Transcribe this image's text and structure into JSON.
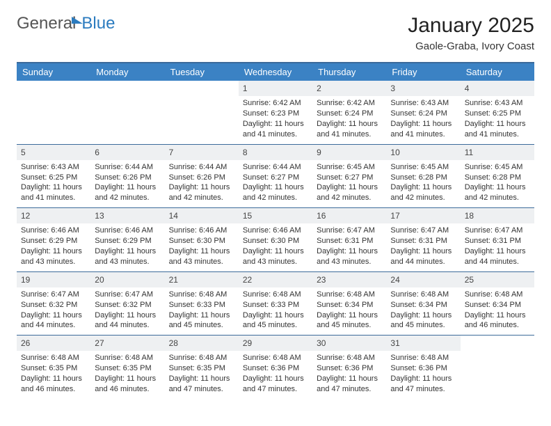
{
  "logo": {
    "text1": "General",
    "text2": "Blue"
  },
  "title": "January 2025",
  "location": "Gaole-Graba, Ivory Coast",
  "colors": {
    "header_bg": "#3b82c4",
    "header_fg": "#ffffff",
    "border": "#3b6a9a",
    "daynum_bg": "#eef0f2",
    "text": "#333333",
    "logo_gray": "#555555",
    "logo_blue": "#2b7bbf",
    "background": "#ffffff"
  },
  "typography": {
    "title_fontsize": 30,
    "location_fontsize": 15,
    "header_fontsize": 13,
    "daynum_fontsize": 12,
    "cell_fontsize": 11
  },
  "dayHeaders": [
    "Sunday",
    "Monday",
    "Tuesday",
    "Wednesday",
    "Thursday",
    "Friday",
    "Saturday"
  ],
  "weeks": [
    [
      null,
      null,
      null,
      {
        "n": "1",
        "sr": "Sunrise: 6:42 AM",
        "ss": "Sunset: 6:23 PM",
        "dl": "Daylight: 11 hours and 41 minutes."
      },
      {
        "n": "2",
        "sr": "Sunrise: 6:42 AM",
        "ss": "Sunset: 6:24 PM",
        "dl": "Daylight: 11 hours and 41 minutes."
      },
      {
        "n": "3",
        "sr": "Sunrise: 6:43 AM",
        "ss": "Sunset: 6:24 PM",
        "dl": "Daylight: 11 hours and 41 minutes."
      },
      {
        "n": "4",
        "sr": "Sunrise: 6:43 AM",
        "ss": "Sunset: 6:25 PM",
        "dl": "Daylight: 11 hours and 41 minutes."
      }
    ],
    [
      {
        "n": "5",
        "sr": "Sunrise: 6:43 AM",
        "ss": "Sunset: 6:25 PM",
        "dl": "Daylight: 11 hours and 41 minutes."
      },
      {
        "n": "6",
        "sr": "Sunrise: 6:44 AM",
        "ss": "Sunset: 6:26 PM",
        "dl": "Daylight: 11 hours and 42 minutes."
      },
      {
        "n": "7",
        "sr": "Sunrise: 6:44 AM",
        "ss": "Sunset: 6:26 PM",
        "dl": "Daylight: 11 hours and 42 minutes."
      },
      {
        "n": "8",
        "sr": "Sunrise: 6:44 AM",
        "ss": "Sunset: 6:27 PM",
        "dl": "Daylight: 11 hours and 42 minutes."
      },
      {
        "n": "9",
        "sr": "Sunrise: 6:45 AM",
        "ss": "Sunset: 6:27 PM",
        "dl": "Daylight: 11 hours and 42 minutes."
      },
      {
        "n": "10",
        "sr": "Sunrise: 6:45 AM",
        "ss": "Sunset: 6:28 PM",
        "dl": "Daylight: 11 hours and 42 minutes."
      },
      {
        "n": "11",
        "sr": "Sunrise: 6:45 AM",
        "ss": "Sunset: 6:28 PM",
        "dl": "Daylight: 11 hours and 42 minutes."
      }
    ],
    [
      {
        "n": "12",
        "sr": "Sunrise: 6:46 AM",
        "ss": "Sunset: 6:29 PM",
        "dl": "Daylight: 11 hours and 43 minutes."
      },
      {
        "n": "13",
        "sr": "Sunrise: 6:46 AM",
        "ss": "Sunset: 6:29 PM",
        "dl": "Daylight: 11 hours and 43 minutes."
      },
      {
        "n": "14",
        "sr": "Sunrise: 6:46 AM",
        "ss": "Sunset: 6:30 PM",
        "dl": "Daylight: 11 hours and 43 minutes."
      },
      {
        "n": "15",
        "sr": "Sunrise: 6:46 AM",
        "ss": "Sunset: 6:30 PM",
        "dl": "Daylight: 11 hours and 43 minutes."
      },
      {
        "n": "16",
        "sr": "Sunrise: 6:47 AM",
        "ss": "Sunset: 6:31 PM",
        "dl": "Daylight: 11 hours and 43 minutes."
      },
      {
        "n": "17",
        "sr": "Sunrise: 6:47 AM",
        "ss": "Sunset: 6:31 PM",
        "dl": "Daylight: 11 hours and 44 minutes."
      },
      {
        "n": "18",
        "sr": "Sunrise: 6:47 AM",
        "ss": "Sunset: 6:31 PM",
        "dl": "Daylight: 11 hours and 44 minutes."
      }
    ],
    [
      {
        "n": "19",
        "sr": "Sunrise: 6:47 AM",
        "ss": "Sunset: 6:32 PM",
        "dl": "Daylight: 11 hours and 44 minutes."
      },
      {
        "n": "20",
        "sr": "Sunrise: 6:47 AM",
        "ss": "Sunset: 6:32 PM",
        "dl": "Daylight: 11 hours and 44 minutes."
      },
      {
        "n": "21",
        "sr": "Sunrise: 6:48 AM",
        "ss": "Sunset: 6:33 PM",
        "dl": "Daylight: 11 hours and 45 minutes."
      },
      {
        "n": "22",
        "sr": "Sunrise: 6:48 AM",
        "ss": "Sunset: 6:33 PM",
        "dl": "Daylight: 11 hours and 45 minutes."
      },
      {
        "n": "23",
        "sr": "Sunrise: 6:48 AM",
        "ss": "Sunset: 6:34 PM",
        "dl": "Daylight: 11 hours and 45 minutes."
      },
      {
        "n": "24",
        "sr": "Sunrise: 6:48 AM",
        "ss": "Sunset: 6:34 PM",
        "dl": "Daylight: 11 hours and 45 minutes."
      },
      {
        "n": "25",
        "sr": "Sunrise: 6:48 AM",
        "ss": "Sunset: 6:34 PM",
        "dl": "Daylight: 11 hours and 46 minutes."
      }
    ],
    [
      {
        "n": "26",
        "sr": "Sunrise: 6:48 AM",
        "ss": "Sunset: 6:35 PM",
        "dl": "Daylight: 11 hours and 46 minutes."
      },
      {
        "n": "27",
        "sr": "Sunrise: 6:48 AM",
        "ss": "Sunset: 6:35 PM",
        "dl": "Daylight: 11 hours and 46 minutes."
      },
      {
        "n": "28",
        "sr": "Sunrise: 6:48 AM",
        "ss": "Sunset: 6:35 PM",
        "dl": "Daylight: 11 hours and 47 minutes."
      },
      {
        "n": "29",
        "sr": "Sunrise: 6:48 AM",
        "ss": "Sunset: 6:36 PM",
        "dl": "Daylight: 11 hours and 47 minutes."
      },
      {
        "n": "30",
        "sr": "Sunrise: 6:48 AM",
        "ss": "Sunset: 6:36 PM",
        "dl": "Daylight: 11 hours and 47 minutes."
      },
      {
        "n": "31",
        "sr": "Sunrise: 6:48 AM",
        "ss": "Sunset: 6:36 PM",
        "dl": "Daylight: 11 hours and 47 minutes."
      },
      null
    ]
  ]
}
